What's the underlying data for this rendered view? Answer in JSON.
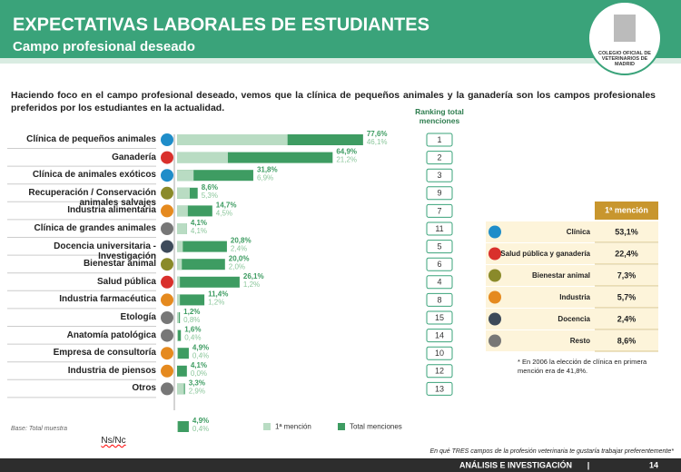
{
  "header": {
    "title": "EXPECTATIVAS LABORALES DE ESTUDIANTES",
    "subtitle": "Campo profesional deseado",
    "logo": "COLEGIO OFICIAL DE VETERINARIOS DE MADRID"
  },
  "intro": "Haciendo foco en el campo profesional deseado, vemos que la clínica de pequeños animales  y la ganadería son los campos profesionales preferidos por los estudiantes en la actualidad.",
  "chart_data": {
    "type": "bar",
    "orientation": "horizontal",
    "categories": [
      "Clínica de pequeños animales",
      "Ganadería",
      "Clínica de animales exóticos",
      "Recuperación / Conservación animales salvajes",
      "Industria alimentaria",
      "Clínica de grandes animales",
      "Docencia universitaria - Investigación",
      "Bienestar animal",
      "Salud pública",
      "Industria farmacéutica",
      "Etología",
      "Anatomía patológica",
      "Empresa de consultoría",
      "Industria de piensos",
      "Otros",
      "Ns/Nc"
    ],
    "series": [
      {
        "name": "Total menciones",
        "color": "#3e9c62",
        "values": [
          77.6,
          64.9,
          31.8,
          8.6,
          14.7,
          4.1,
          20.8,
          20.0,
          26.1,
          11.4,
          1.2,
          1.6,
          4.9,
          4.1,
          3.3,
          4.9
        ],
        "value_labels": [
          "77,6%",
          "64,9%",
          "31,8%",
          "8,6%",
          "14,7%",
          "4,1%",
          "20,8%",
          "20,0%",
          "26,1%",
          "11,4%",
          "1,2%",
          "1,6%",
          "4,9%",
          "4,1%",
          "3,3%",
          "4,9%"
        ]
      },
      {
        "name": "1ª mención",
        "color": "#b9dcc3",
        "values": [
          46.1,
          21.2,
          6.9,
          5.3,
          4.5,
          4.1,
          2.4,
          2.0,
          1.2,
          1.2,
          0.8,
          0.4,
          0.4,
          0.0,
          2.9,
          0.4
        ],
        "value_labels": [
          "46,1%",
          "21,2%",
          "6,9%",
          "5,3%",
          "4,5%",
          "4,1%",
          "2,4%",
          "2,0%",
          "1,2%",
          "1,2%",
          "0,8%",
          "0,4%",
          "0,4%",
          "0,0%",
          "2,9%",
          "0,4%"
        ]
      }
    ],
    "xlim": [
      0,
      100
    ],
    "ranking_title": "Ranking total menciones",
    "ranking": [
      1,
      2,
      3,
      9,
      7,
      11,
      5,
      6,
      4,
      8,
      15,
      14,
      10,
      12,
      13
    ],
    "base": "Base: Total muestra"
  },
  "table": {
    "header": "1ª mención",
    "rows": [
      [
        "Clínica",
        "53,1%"
      ],
      [
        "Salud pública y ganadería",
        "22,4%"
      ],
      [
        "Bienestar animal",
        "7,3%"
      ],
      [
        "Industria",
        "5,7%"
      ],
      [
        "Docencia",
        "2,4%"
      ],
      [
        "Resto",
        "8,6%"
      ]
    ]
  },
  "footnote": "* En 2006 la elección de clínica en primera mención era de 41,8%.",
  "question": "En qué TRES campos de la profesión veterinaria te gustaría trabajar preferentemente*",
  "footer": {
    "section": "ANÁLISIS E INVESTIGACIÓN",
    "page": "14"
  }
}
